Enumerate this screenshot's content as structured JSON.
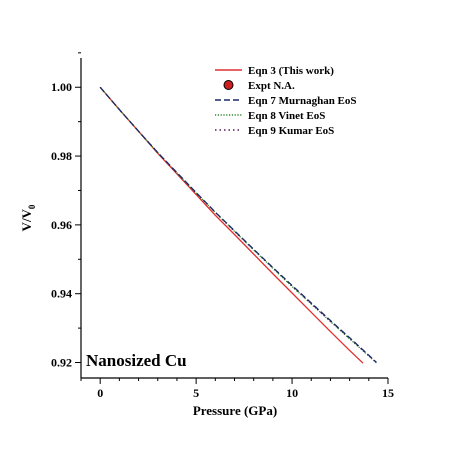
{
  "chart_data": {
    "type": "line",
    "xlabel": "Pressure (GPa)",
    "ylabel_main": "V/V",
    "ylabel_sub": "0",
    "annotation": "Nanosized Cu",
    "xlim": [
      -1,
      15
    ],
    "ylim": [
      0.9155,
      1.0085
    ],
    "xticks": [
      0,
      5,
      10,
      15
    ],
    "yticks": [
      0.92,
      0.94,
      0.96,
      0.98,
      1.0
    ],
    "ytick_labels": [
      "0.92",
      "0.94",
      "0.96",
      "0.98",
      "1.00"
    ],
    "legend_position": "top-right",
    "grid": false,
    "series": [
      {
        "name": "Eqn 3 (This work)",
        "style": "solid",
        "color": "#e03030",
        "x": [
          0,
          1,
          2,
          3,
          4,
          5,
          6,
          7,
          8,
          9,
          10,
          11,
          12,
          13,
          13.7
        ],
        "y": [
          1.0,
          0.9935,
          0.9872,
          0.9808,
          0.9748,
          0.9688,
          0.9628,
          0.9572,
          0.9515,
          0.9458,
          0.9402,
          0.9346,
          0.929,
          0.9235,
          0.9198
        ]
      },
      {
        "name": "Expt  N.A.",
        "style": "marker",
        "color": "#cc2020",
        "x": [],
        "y": []
      },
      {
        "name": "Eqn 7 Murnaghan EoS",
        "style": "dashed",
        "color": "#1a2a66",
        "x": [
          0,
          1,
          2,
          3,
          4,
          5,
          6,
          7,
          8,
          9,
          10,
          11,
          12,
          13,
          14,
          14.4
        ],
        "y": [
          1.0,
          0.9935,
          0.9872,
          0.981,
          0.9752,
          0.9694,
          0.9637,
          0.9583,
          0.9529,
          0.9476,
          0.9424,
          0.9373,
          0.9322,
          0.9272,
          0.9221,
          0.92
        ]
      },
      {
        "name": "Eqn 8 Vinet EoS",
        "style": "dotted",
        "color": "#2a8a2a",
        "x": [
          0,
          1,
          2,
          3,
          4,
          5,
          6,
          7,
          8,
          9,
          10,
          11,
          12,
          13,
          14,
          14.4
        ],
        "y": [
          1.0,
          0.9935,
          0.9872,
          0.981,
          0.9751,
          0.9693,
          0.9636,
          0.9581,
          0.9527,
          0.9474,
          0.9421,
          0.937,
          0.9319,
          0.9269,
          0.9219,
          0.9199
        ]
      },
      {
        "name": "Eqn 9 Kumar EoS",
        "style": "dashdot",
        "color": "#5a1a5a",
        "x": [
          0,
          1,
          2,
          3,
          4,
          5,
          6,
          7,
          8,
          9,
          10,
          11,
          12,
          13,
          14,
          14.4
        ],
        "y": [
          1.0,
          0.9935,
          0.9872,
          0.981,
          0.9751,
          0.9693,
          0.9636,
          0.9582,
          0.9528,
          0.9475,
          0.9422,
          0.9371,
          0.932,
          0.927,
          0.922,
          0.92
        ]
      }
    ]
  }
}
